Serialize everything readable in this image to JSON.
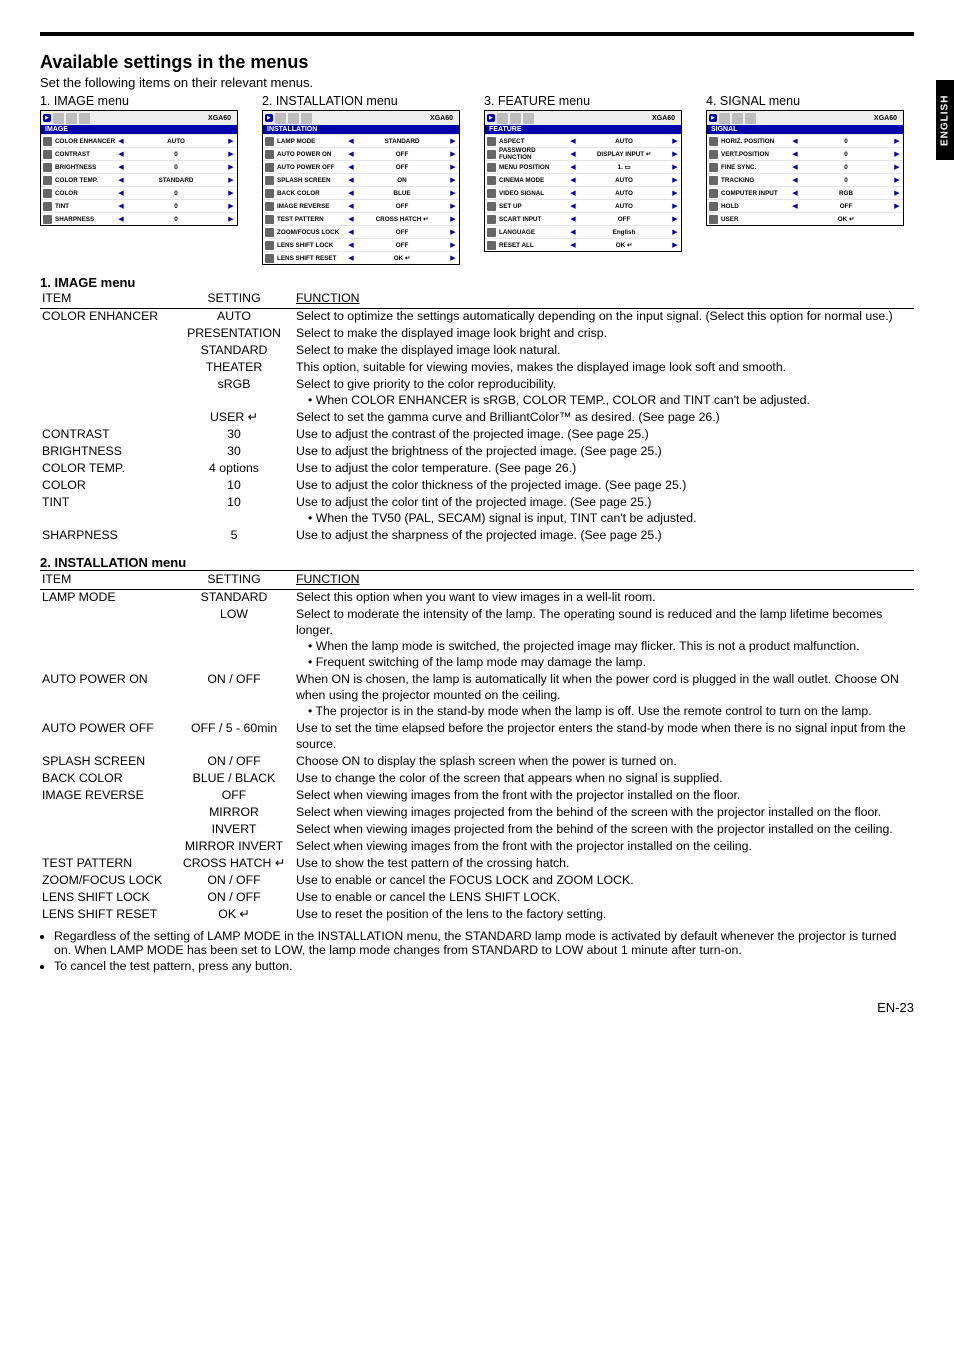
{
  "sideTab": "ENGLISH",
  "header": {
    "title": "Available settings in the menus",
    "subtitle": "Set the following items on their relevant menus."
  },
  "menus": {
    "captions": [
      "1. IMAGE menu",
      "2. INSTALLATION menu",
      "3. FEATURE menu",
      "4. SIGNAL menu"
    ],
    "model": "XGA60",
    "tabs": [
      "IMAGE",
      "INSTALLATION",
      "FEATURE",
      "SIGNAL"
    ],
    "m1": [
      {
        "lbl": "COLOR ENHANCER",
        "val": "AUTO"
      },
      {
        "lbl": "CONTRAST",
        "val": "0"
      },
      {
        "lbl": "BRIGHTNESS",
        "val": "0"
      },
      {
        "lbl": "COLOR TEMP.",
        "val": "STANDARD"
      },
      {
        "lbl": "COLOR",
        "val": "0"
      },
      {
        "lbl": "TINT",
        "val": "0"
      },
      {
        "lbl": "SHARPNESS",
        "val": "0"
      }
    ],
    "m2": [
      {
        "lbl": "LAMP MODE",
        "val": "STANDARD"
      },
      {
        "lbl": "AUTO POWER ON",
        "val": "OFF"
      },
      {
        "lbl": "AUTO POWER OFF",
        "val": "OFF"
      },
      {
        "lbl": "SPLASH SCREEN",
        "val": "ON"
      },
      {
        "lbl": "BACK COLOR",
        "val": "BLUE"
      },
      {
        "lbl": "IMAGE REVERSE",
        "val": "OFF"
      },
      {
        "lbl": "TEST PATTERN",
        "val": "CROSS HATCH ↵"
      },
      {
        "lbl": "ZOOM/FOCUS LOCK",
        "val": "OFF"
      },
      {
        "lbl": "LENS SHIFT LOCK",
        "val": "OFF"
      },
      {
        "lbl": "LENS SHIFT RESET",
        "val": "OK ↵"
      }
    ],
    "m3": [
      {
        "lbl": "ASPECT",
        "val": "AUTO"
      },
      {
        "lbl": "PASSWORD FUNCTION",
        "val": "DISPLAY INPUT ↵"
      },
      {
        "lbl": "MENU POSITION",
        "val": "1. ▭"
      },
      {
        "lbl": "CINEMA MODE",
        "val": "AUTO"
      },
      {
        "lbl": "VIDEO SIGNAL",
        "val": "AUTO"
      },
      {
        "lbl": "SET UP",
        "val": "AUTO"
      },
      {
        "lbl": "SCART INPUT",
        "val": "OFF"
      },
      {
        "lbl": "LANGUAGE",
        "val": "English"
      },
      {
        "lbl": "RESET ALL",
        "val": "OK ↵"
      }
    ],
    "m4": [
      {
        "lbl": "HORIZ. POSITION",
        "val": "0"
      },
      {
        "lbl": "VERT.POSITION",
        "val": "0"
      },
      {
        "lbl": "FINE SYNC.",
        "val": "0"
      },
      {
        "lbl": "TRACKING",
        "val": "0"
      },
      {
        "lbl": "COMPUTER INPUT",
        "val": "RGB"
      },
      {
        "lbl": "HOLD",
        "val": "OFF"
      },
      {
        "lbl": "USER",
        "val": "OK ↵"
      }
    ]
  },
  "table1": {
    "title": "1. IMAGE menu",
    "head": {
      "c1": "ITEM",
      "c2": "SETTING",
      "c3": "FUNCTION"
    },
    "rows": [
      {
        "item": "COLOR ENHANCER",
        "setting": "AUTO",
        "fn": "Select to optimize the settings automatically depending on the input signal. (Select this option for normal use.)"
      },
      {
        "item": "",
        "setting": "PRESENTATION",
        "fn": "Select to make the displayed image look bright and crisp."
      },
      {
        "item": "",
        "setting": "STANDARD",
        "fn": "Select to make the displayed image look natural."
      },
      {
        "item": "",
        "setting": "THEATER",
        "fn": "This option, suitable for viewing movies, makes the displayed image look soft and smooth."
      },
      {
        "item": "",
        "setting": "sRGB",
        "fn": "Select to give priority to the color reproducibility.",
        "bullet": "When COLOR ENHANCER is sRGB, COLOR TEMP., COLOR and TINT can't be adjusted."
      },
      {
        "item": "",
        "setting": "USER ↵",
        "fn": "Select to set the gamma curve and BrilliantColor™ as desired. (See page 26.)"
      },
      {
        "item": "CONTRAST",
        "setting": "30",
        "fn": "Use to adjust the contrast of the projected image. (See page 25.)"
      },
      {
        "item": "BRIGHTNESS",
        "setting": "30",
        "fn": "Use to adjust the brightness of the projected image. (See page 25.)"
      },
      {
        "item": "COLOR TEMP.",
        "setting": "4 options",
        "fn": "Use to adjust the color temperature. (See page 26.)"
      },
      {
        "item": "COLOR",
        "setting": "10",
        "fn": "Use to adjust the color thickness of the projected image. (See page 25.)"
      },
      {
        "item": "TINT",
        "setting": "10",
        "fn": "Use to adjust the color tint of the projected image. (See page 25.)",
        "bullet": "When the TV50 (PAL, SECAM) signal is input, TINT can't be adjusted."
      },
      {
        "item": "SHARPNESS",
        "setting": "5",
        "fn": "Use to adjust the sharpness of the projected image. (See page 25.)"
      }
    ]
  },
  "table2": {
    "title": "2. INSTALLATION menu",
    "head": {
      "c1": "ITEM",
      "c2": "SETTING",
      "c3": "FUNCTION"
    },
    "rows": [
      {
        "item": "LAMP MODE",
        "setting": "STANDARD",
        "fn": "Select this option when you want to view images in a well-lit room."
      },
      {
        "item": "",
        "setting": "LOW",
        "fn": "Select to moderate the intensity of the lamp. The operating sound is reduced and the lamp lifetime becomes longer.",
        "bullets": [
          "When the lamp mode is switched, the projected image may flicker. This is not a product malfunction.",
          "Frequent switching of the lamp mode may damage the lamp."
        ]
      },
      {
        "item": "AUTO POWER ON",
        "setting": "ON / OFF",
        "fn": "When ON is chosen, the lamp is automatically lit when the power cord is plugged in the wall outlet. Choose ON when using the projector mounted on the ceiling.",
        "bullets": [
          "The projector is in the stand-by mode when the lamp is off.  Use the remote control to turn on the lamp."
        ]
      },
      {
        "item": "AUTO POWER OFF",
        "setting": "OFF / 5 - 60min",
        "fn": "Use to set the time elapsed before the projector enters the stand-by mode when there is no signal input from the source."
      },
      {
        "item": "SPLASH SCREEN",
        "setting": "ON / OFF",
        "fn": "Choose ON to display the splash screen when the power is turned on."
      },
      {
        "item": "BACK COLOR",
        "setting": "BLUE / BLACK",
        "fn": "Use to change the color of the screen that appears when no signal is supplied."
      },
      {
        "item": "IMAGE REVERSE",
        "setting": "OFF",
        "fn": "Select when viewing images from the front with the projector installed on the floor."
      },
      {
        "item": "",
        "setting": "MIRROR",
        "fn": "Select when viewing images projected from the behind of the screen with the projector installed on the floor."
      },
      {
        "item": "",
        "setting": "INVERT",
        "fn": "Select when viewing images projected from the behind of the screen with the projector installed on the ceiling."
      },
      {
        "item": "",
        "setting": "MIRROR INVERT",
        "fn": "Select when viewing images from the front with the projector installed on the ceiling."
      },
      {
        "item": "TEST PATTERN",
        "setting": "CROSS HATCH ↵",
        "fn": "Use to show the test pattern of the crossing hatch."
      },
      {
        "item": "ZOOM/FOCUS LOCK",
        "setting": "ON / OFF",
        "fn": "Use to enable or cancel the FOCUS LOCK and  ZOOM LOCK."
      },
      {
        "item": "LENS SHIFT LOCK",
        "setting": "ON / OFF",
        "fn": "Use to enable or cancel the LENS SHIFT LOCK."
      },
      {
        "item": "LENS SHIFT RESET",
        "setting": "OK ↵",
        "fn": "Use to reset the position of the lens to the factory setting."
      }
    ]
  },
  "notes": [
    "Regardless of the setting of LAMP MODE in the INSTALLATION menu, the STANDARD lamp mode is activated by default whenever the projector is turned on. When LAMP MODE has been set to LOW, the lamp mode changes from STANDARD to LOW about 1 minute after turn-on.",
    "To cancel the test pattern, press any button."
  ],
  "pageNumber": "EN-23"
}
